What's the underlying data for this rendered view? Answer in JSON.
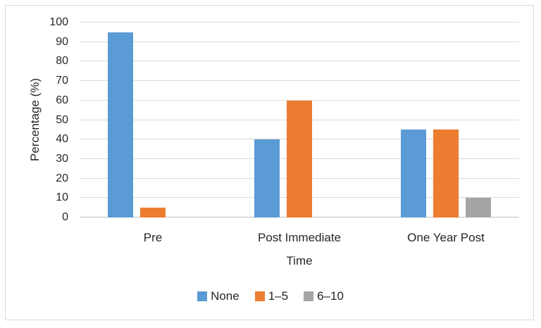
{
  "figure": {
    "background": "#FFFFFF",
    "border_color": "#D9D9D9"
  },
  "chart_data": {
    "type": "bar",
    "title": "",
    "xlabel": "Time",
    "ylabel": "Percentage (%)",
    "categories": [
      "Pre",
      "Post Immediate",
      "One Year Post"
    ],
    "series": [
      {
        "name": "None",
        "color": "#5B9BD5",
        "values": [
          95,
          40,
          45
        ]
      },
      {
        "name": "1–5",
        "color": "#ED7D31",
        "values": [
          5,
          60,
          45
        ]
      },
      {
        "name": "6–10",
        "color": "#A5A5A5",
        "values": [
          0,
          0,
          10
        ]
      }
    ],
    "ylim": [
      0,
      100
    ],
    "yticks": [
      0,
      10,
      20,
      30,
      40,
      50,
      60,
      70,
      80,
      90,
      100
    ],
    "grid": true,
    "gridline_color": "#D9D9D9",
    "axis_line_color": "#BFBFBF",
    "text_color": "#262626",
    "legend_position": "bottom"
  }
}
